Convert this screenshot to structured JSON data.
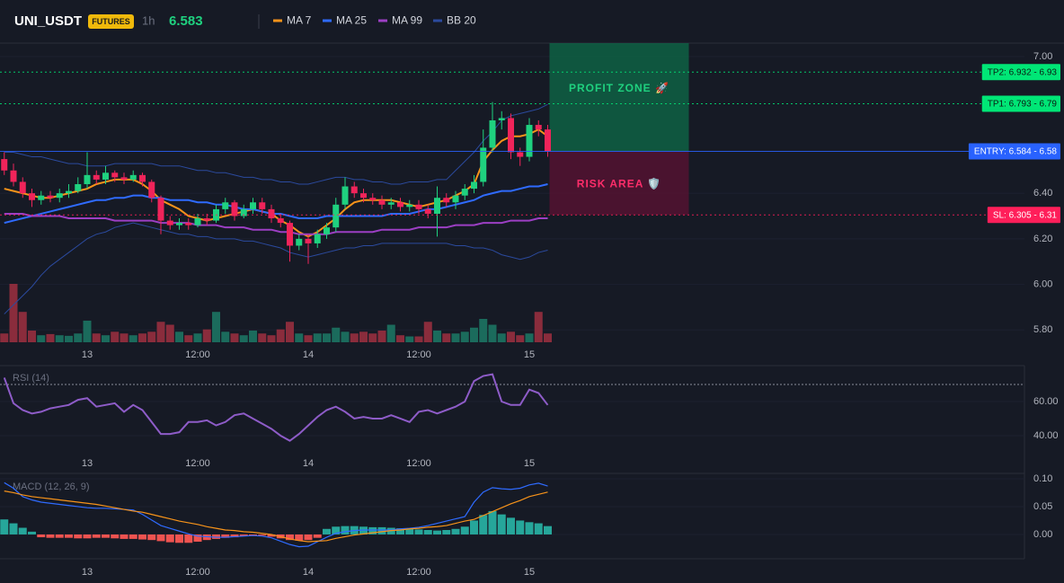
{
  "header": {
    "symbol": "UNI_USDT",
    "badge": "FUTURES",
    "interval": "1h",
    "price": "6.583"
  },
  "chart_data": [
    {
      "type": "candlestick",
      "categories": [
        null,
        null,
        null,
        null,
        null,
        null,
        null,
        null,
        null,
        "13",
        null,
        null,
        null,
        null,
        null,
        null,
        null,
        null,
        null,
        null,
        null,
        "12:00",
        null,
        null,
        null,
        null,
        null,
        null,
        null,
        null,
        null,
        null,
        null,
        "14",
        null,
        null,
        null,
        null,
        null,
        null,
        null,
        null,
        null,
        null,
        null,
        "12:00",
        null,
        null,
        null,
        null,
        null,
        null,
        null,
        null,
        null,
        null,
        null,
        "15",
        null,
        null
      ],
      "open": [
        6.55,
        6.5,
        6.45,
        6.4,
        6.37,
        6.39,
        6.38,
        6.4,
        6.41,
        6.44,
        6.48,
        6.46,
        6.49,
        6.47,
        6.46,
        6.48,
        6.45,
        6.38,
        6.28,
        6.26,
        6.27,
        6.26,
        6.29,
        6.28,
        6.33,
        6.36,
        6.3,
        6.33,
        6.36,
        6.33,
        6.29,
        6.27,
        6.17,
        6.2,
        6.18,
        6.22,
        6.25,
        6.35,
        6.43,
        6.4,
        6.38,
        6.37,
        6.35,
        6.36,
        6.34,
        6.35,
        6.33,
        6.31,
        6.38,
        6.36,
        6.39,
        6.42,
        6.45,
        6.6,
        6.72,
        6.73,
        6.58,
        6.56,
        6.7,
        6.68
      ],
      "high": [
        6.58,
        6.53,
        6.47,
        6.42,
        6.41,
        6.41,
        6.42,
        6.44,
        6.47,
        6.58,
        6.5,
        6.52,
        6.5,
        6.49,
        6.5,
        6.49,
        6.46,
        6.39,
        6.3,
        6.29,
        6.29,
        6.31,
        6.31,
        6.35,
        6.38,
        6.37,
        6.35,
        6.38,
        6.38,
        6.35,
        6.31,
        6.28,
        6.22,
        6.22,
        6.24,
        6.27,
        6.38,
        6.47,
        6.45,
        6.42,
        6.4,
        6.39,
        6.38,
        6.38,
        6.37,
        6.37,
        6.35,
        6.43,
        6.4,
        6.41,
        6.44,
        6.48,
        6.68,
        6.8,
        6.76,
        6.75,
        6.6,
        6.73,
        6.72,
        6.7
      ],
      "low": [
        6.48,
        6.43,
        6.38,
        6.34,
        6.35,
        6.36,
        6.36,
        6.38,
        6.4,
        6.42,
        6.44,
        6.44,
        6.45,
        6.44,
        6.45,
        6.43,
        6.36,
        6.22,
        6.24,
        6.24,
        6.24,
        6.25,
        6.26,
        6.27,
        6.31,
        6.28,
        6.29,
        6.31,
        6.31,
        6.27,
        6.25,
        6.1,
        6.15,
        6.09,
        6.16,
        6.2,
        6.23,
        6.33,
        6.38,
        6.36,
        6.35,
        6.33,
        6.33,
        6.32,
        6.32,
        6.31,
        6.29,
        6.21,
        6.34,
        6.33,
        6.37,
        6.4,
        6.43,
        6.58,
        6.68,
        6.55,
        6.52,
        6.54,
        6.65,
        6.56
      ],
      "close": [
        6.5,
        6.45,
        6.4,
        6.37,
        6.39,
        6.38,
        6.4,
        6.41,
        6.44,
        6.48,
        6.46,
        6.49,
        6.47,
        6.46,
        6.48,
        6.45,
        6.38,
        6.28,
        6.26,
        6.27,
        6.26,
        6.29,
        6.28,
        6.33,
        6.36,
        6.3,
        6.33,
        6.36,
        6.33,
        6.29,
        6.27,
        6.17,
        6.2,
        6.18,
        6.22,
        6.25,
        6.35,
        6.43,
        6.4,
        6.38,
        6.37,
        6.35,
        6.36,
        6.34,
        6.35,
        6.33,
        6.31,
        6.38,
        6.36,
        6.39,
        6.42,
        6.45,
        6.6,
        6.72,
        6.73,
        6.58,
        6.56,
        6.7,
        6.68,
        6.583
      ],
      "volume": [
        15,
        100,
        52,
        20,
        12,
        14,
        12,
        11,
        15,
        37,
        15,
        12,
        18,
        15,
        12,
        15,
        18,
        35,
        30,
        18,
        12,
        15,
        22,
        52,
        18,
        15,
        12,
        20,
        15,
        12,
        22,
        35,
        15,
        12,
        15,
        15,
        25,
        18,
        15,
        18,
        15,
        20,
        30,
        12,
        10,
        10,
        35,
        20,
        15,
        15,
        18,
        25,
        40,
        30,
        15,
        18,
        12,
        15,
        52,
        15
      ],
      "volume_lim": [
        0,
        100
      ],
      "up_color": "#1fd17f",
      "down_color": "#f0245a",
      "volume_up_color": "#1b6b5c",
      "volume_down_color": "#8a2c3c",
      "series": [
        {
          "name": "MA 7",
          "color": "#f7931a",
          "values": [
            6.42,
            6.41,
            6.4,
            6.39,
            6.38,
            6.38,
            6.39,
            6.4,
            6.41,
            6.42,
            6.44,
            6.45,
            6.46,
            6.46,
            6.46,
            6.44,
            6.41,
            6.37,
            6.35,
            6.33,
            6.3,
            6.29,
            6.28,
            6.29,
            6.3,
            6.31,
            6.32,
            6.33,
            6.32,
            6.31,
            6.28,
            6.26,
            6.23,
            6.21,
            6.23,
            6.26,
            6.29,
            6.33,
            6.36,
            6.37,
            6.37,
            6.37,
            6.37,
            6.36,
            6.35,
            6.34,
            6.35,
            6.36,
            6.37,
            6.39,
            6.41,
            6.44,
            6.54,
            6.59,
            6.63,
            6.65,
            6.65,
            6.66,
            6.68,
            6.65
          ]
        },
        {
          "name": "MA 25",
          "color": "#2f6bff",
          "values": [
            6.27,
            6.28,
            6.29,
            6.3,
            6.31,
            6.32,
            6.33,
            6.34,
            6.35,
            6.36,
            6.37,
            6.37,
            6.38,
            6.38,
            6.39,
            6.39,
            6.38,
            6.38,
            6.37,
            6.37,
            6.37,
            6.36,
            6.36,
            6.35,
            6.35,
            6.34,
            6.33,
            6.33,
            6.32,
            6.31,
            6.31,
            6.3,
            6.29,
            6.29,
            6.29,
            6.3,
            6.3,
            6.3,
            6.3,
            6.3,
            6.3,
            6.3,
            6.31,
            6.31,
            6.31,
            6.32,
            6.33,
            6.33,
            6.34,
            6.35,
            6.36,
            6.37,
            6.39,
            6.4,
            6.41,
            6.41,
            6.42,
            6.43,
            6.43,
            6.44
          ]
        },
        {
          "name": "MA 99",
          "color": "#9c3fc4",
          "values": [
            6.31,
            6.31,
            6.31,
            6.3,
            6.3,
            6.3,
            6.3,
            6.29,
            6.29,
            6.29,
            6.29,
            6.29,
            6.28,
            6.28,
            6.28,
            6.28,
            6.28,
            6.27,
            6.27,
            6.27,
            6.27,
            6.26,
            6.26,
            6.26,
            6.25,
            6.25,
            6.25,
            6.24,
            6.24,
            6.24,
            6.23,
            6.23,
            6.22,
            6.22,
            6.22,
            6.22,
            6.23,
            6.23,
            6.23,
            6.23,
            6.23,
            6.24,
            6.24,
            6.24,
            6.24,
            6.25,
            6.25,
            6.25,
            6.25,
            6.26,
            6.26,
            6.26,
            6.27,
            6.27,
            6.27,
            6.28,
            6.28,
            6.28,
            6.29,
            6.29
          ]
        },
        {
          "name": "BB 20",
          "color": "#2b4a9e",
          "upper": [
            6.58,
            6.58,
            6.57,
            6.56,
            6.56,
            6.55,
            6.54,
            6.53,
            6.53,
            6.52,
            6.52,
            6.52,
            6.53,
            6.53,
            6.53,
            6.53,
            6.53,
            6.52,
            6.52,
            6.52,
            6.51,
            6.5,
            6.5,
            6.49,
            6.49,
            6.48,
            6.47,
            6.47,
            6.46,
            6.46,
            6.45,
            6.45,
            6.44,
            6.44,
            6.45,
            6.46,
            6.47,
            6.47,
            6.46,
            6.46,
            6.45,
            6.45,
            6.44,
            6.44,
            6.45,
            6.45,
            6.45,
            6.46,
            6.46,
            6.5,
            6.54,
            6.58,
            6.63,
            6.67,
            6.72,
            6.74,
            6.75,
            6.76,
            6.77,
            6.79
          ],
          "lower": [
            5.87,
            5.91,
            5.95,
            5.99,
            6.04,
            6.08,
            6.11,
            6.14,
            6.17,
            6.2,
            6.22,
            6.23,
            6.25,
            6.26,
            6.27,
            6.26,
            6.25,
            6.24,
            6.23,
            6.22,
            6.22,
            6.21,
            6.21,
            6.2,
            6.2,
            6.2,
            6.19,
            6.19,
            6.18,
            6.17,
            6.16,
            6.14,
            6.13,
            6.12,
            6.13,
            6.14,
            6.15,
            6.16,
            6.16,
            6.17,
            6.17,
            6.18,
            6.18,
            6.18,
            6.18,
            6.18,
            6.18,
            6.18,
            6.18,
            6.17,
            6.17,
            6.16,
            6.16,
            6.15,
            6.13,
            6.12,
            6.11,
            6.12,
            6.14,
            6.15
          ]
        }
      ],
      "ylim": [
        5.746,
        7.059
      ],
      "yticks": [
        {
          "value": 7.0,
          "label": "7.00"
        },
        {
          "value": 6.4,
          "label": "6.40"
        },
        {
          "value": 6.2,
          "label": "6.20"
        },
        {
          "value": 6.0,
          "label": "6.00"
        },
        {
          "value": 5.8,
          "label": "5.80"
        }
      ],
      "levels": [
        {
          "label": "TP2: 6.932 - 6.93",
          "value": 6.932,
          "color": "#00e676",
          "dashed": true
        },
        {
          "label": "TP1: 6.793 - 6.79",
          "value": 6.793,
          "color": "#00e676",
          "dashed": true
        },
        {
          "label": "ENTRY: 6.584 - 6.58",
          "value": 6.584,
          "color": "#2962ff",
          "dashed": false
        },
        {
          "label": "SL: 6.305 - 6.31",
          "value": 6.305,
          "color": "#ff1f5a",
          "dashed": true
        }
      ],
      "zones": [
        {
          "label": "PROFIT ZONE 🚀",
          "color": "#0e6b48",
          "text_color": "#1fd17f"
        },
        {
          "label": "RISK AREA 🛡️",
          "color": "#5c1233",
          "text_color": "#ff2d6a"
        }
      ]
    },
    {
      "type": "line",
      "title": "RSI (14)",
      "series": [
        {
          "name": "RSI (14)",
          "color": "#8e5cc8",
          "values": [
            74,
            59,
            55,
            53,
            54,
            56,
            57,
            58,
            61,
            62,
            57,
            58,
            59,
            54,
            58,
            55,
            48,
            41,
            41,
            42,
            48,
            48,
            49,
            46,
            48,
            52,
            53,
            50,
            47,
            44,
            40,
            37,
            41,
            46,
            51,
            55,
            57,
            54,
            50,
            51,
            50,
            50,
            52,
            50,
            48,
            54,
            55,
            53,
            55,
            57,
            60,
            72,
            75,
            76,
            60,
            58,
            58,
            67,
            65,
            58
          ]
        }
      ],
      "ylim": [
        30.5,
        79.5
      ],
      "yticks": [
        {
          "value": 60,
          "label": "60.00"
        },
        {
          "value": 40,
          "label": "40.00"
        }
      ],
      "reference_lines": [
        70
      ]
    },
    {
      "type": "macd",
      "title": "MACD (12, 26, 9)",
      "series": [
        {
          "color": "#2f6bff",
          "values": [
            0.093,
            0.083,
            0.068,
            0.062,
            0.058,
            0.056,
            0.054,
            0.052,
            0.05,
            0.048,
            0.047,
            0.047,
            0.046,
            0.045,
            0.044,
            0.036,
            0.026,
            0.016,
            0.011,
            0.006,
            0.001,
            -0.003,
            -0.004,
            -0.005,
            -0.005,
            -0.004,
            -0.003,
            -0.002,
            -0.003,
            -0.006,
            -0.012,
            -0.018,
            -0.022,
            -0.021,
            -0.013,
            -0.005,
            0.002,
            0.005,
            0.007,
            0.008,
            0.008,
            0.008,
            0.008,
            0.01,
            0.011,
            0.013,
            0.016,
            0.02,
            0.024,
            0.028,
            0.032,
            0.058,
            0.076,
            0.084,
            0.082,
            0.081,
            0.083,
            0.089,
            0.092,
            0.087
          ]
        },
        {
          "color": "#f7931a",
          "values": [
            0.078,
            0.075,
            0.071,
            0.068,
            0.066,
            0.064,
            0.062,
            0.06,
            0.058,
            0.056,
            0.054,
            0.051,
            0.048,
            0.045,
            0.042,
            0.04,
            0.036,
            0.032,
            0.028,
            0.024,
            0.021,
            0.018,
            0.014,
            0.011,
            0.008,
            0.007,
            0.005,
            0.004,
            0.002,
            0.0,
            -0.004,
            -0.008,
            -0.011,
            -0.013,
            -0.012,
            -0.011,
            -0.007,
            -0.004,
            -0.001,
            0.001,
            0.003,
            0.005,
            0.007,
            0.008,
            0.01,
            0.011,
            0.013,
            0.014,
            0.016,
            0.02,
            0.024,
            0.027,
            0.034,
            0.041,
            0.048,
            0.055,
            0.061,
            0.068,
            0.072,
            0.076
          ]
        }
      ],
      "histogram": [
        0.027,
        0.02,
        0.012,
        0.005,
        -0.005,
        -0.006,
        -0.006,
        -0.006,
        -0.007,
        -0.007,
        -0.006,
        -0.006,
        -0.007,
        -0.008,
        -0.008,
        -0.009,
        -0.01,
        -0.012,
        -0.014,
        -0.015,
        -0.015,
        -0.013,
        -0.01,
        -0.008,
        -0.006,
        -0.005,
        -0.003,
        -0.002,
        -0.002,
        -0.004,
        -0.007,
        -0.01,
        -0.011,
        -0.01,
        -0.006,
        0.01,
        0.014,
        0.015,
        0.015,
        0.014,
        0.013,
        0.013,
        0.012,
        0.011,
        0.01,
        0.009,
        0.008,
        0.007,
        0.008,
        0.01,
        0.014,
        0.025,
        0.035,
        0.042,
        0.036,
        0.03,
        0.025,
        0.022,
        0.02,
        0.015
      ],
      "pos_color": "#26a69a",
      "neg_color": "#ef5350",
      "ylim": [
        -0.0436,
        0.108
      ],
      "yticks": [
        {
          "value": 0.1,
          "label": "0.10"
        },
        {
          "value": 0.05,
          "label": "0.05"
        },
        {
          "value": 0,
          "label": "0.00"
        }
      ]
    }
  ]
}
